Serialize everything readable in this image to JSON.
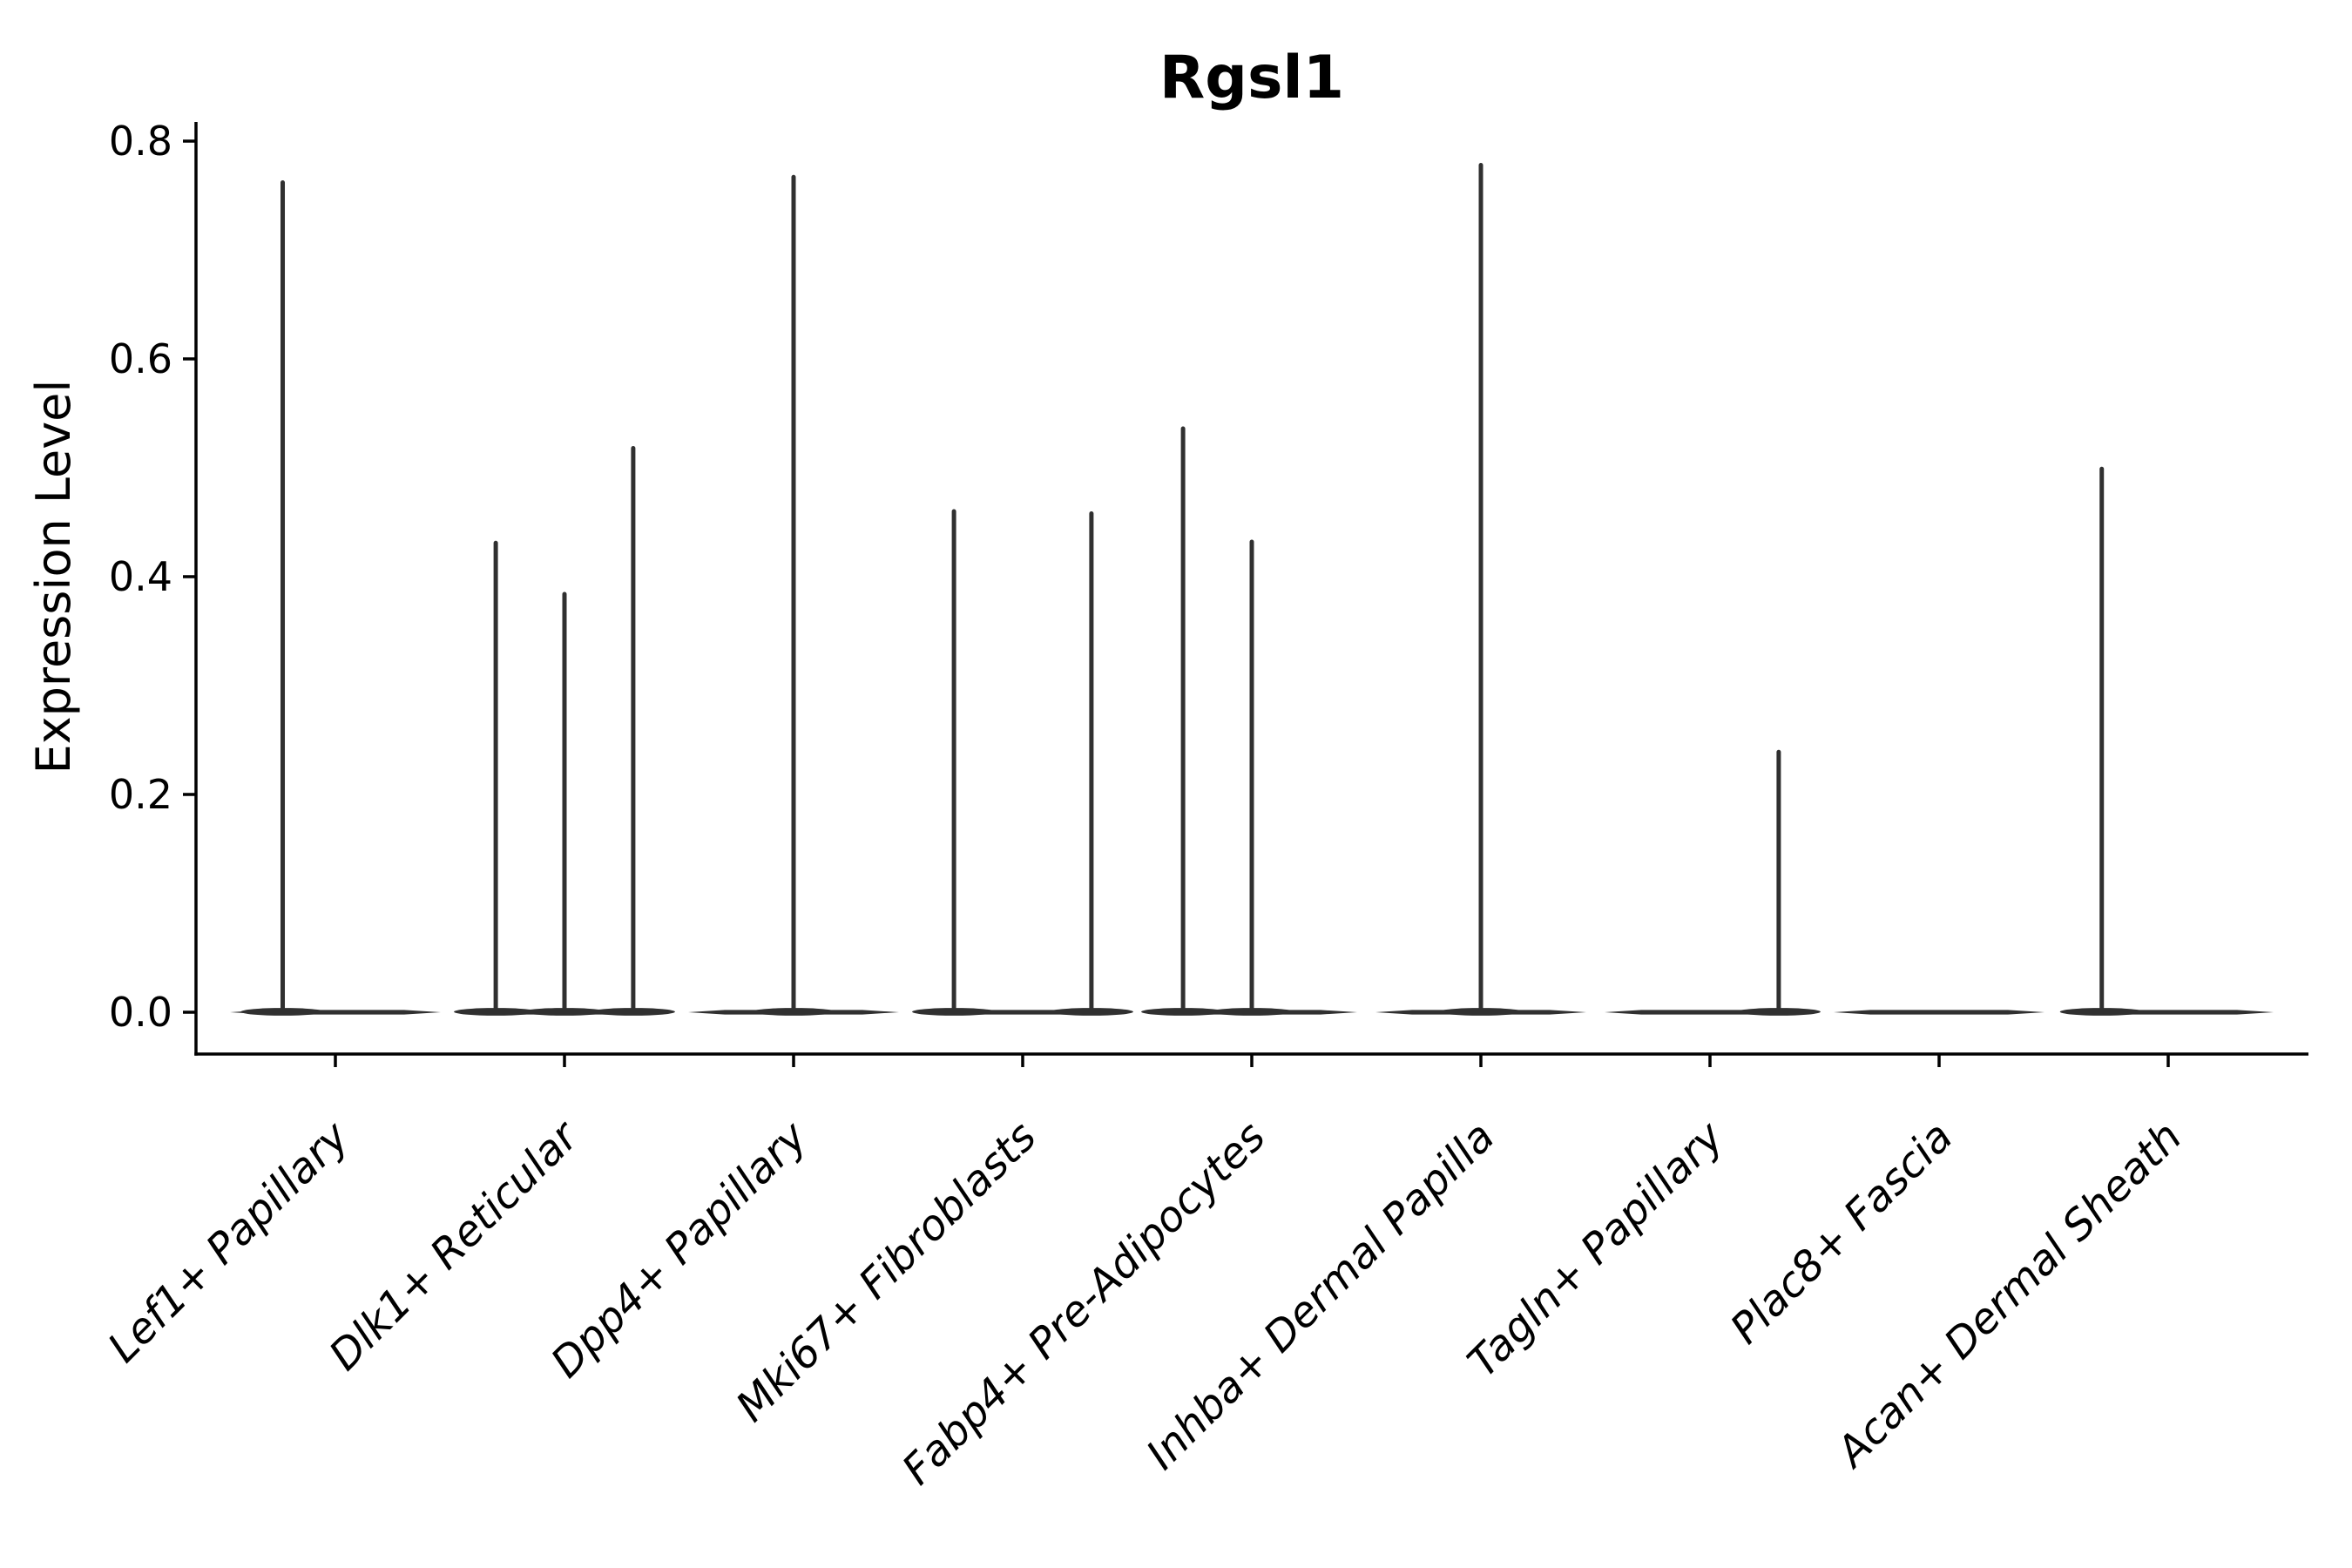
{
  "figure": {
    "background_color": "#ffffff"
  },
  "chart_data": {
    "type": "violin",
    "title": "Rgsl1",
    "xlabel": "",
    "ylabel": "Expression Level",
    "ylim": [
      -0.04,
      0.82
    ],
    "grid": false,
    "legend": null,
    "colors": {
      "violin": "#303030",
      "axis": "#000000",
      "text": "#000000",
      "background": "#ffffff"
    },
    "yticks": [
      {
        "value": 0.0,
        "label": "0.0"
      },
      {
        "value": 0.2,
        "label": "0.2"
      },
      {
        "value": 0.4,
        "label": "0.4"
      },
      {
        "value": 0.6,
        "label": "0.6"
      },
      {
        "value": 0.8,
        "label": "0.8"
      }
    ],
    "categories": [
      "Lef1+ Papillary",
      "Dlk1+ Reticular",
      "Dpp4+ Papillary",
      "Mki67+ Fibroblasts",
      "Fabp4+ Pre-Adipocytes",
      "Inhba+ Dermal Papilla",
      "Tagln+ Papillary",
      "Plac8+ Fascia",
      "Acan+ Dermal Sheath"
    ],
    "baseline_halfwidth": 0.46,
    "violins": [
      {
        "category": "Lef1+ Papillary",
        "density_mass_at_zero": true,
        "spikes": [
          {
            "pos": -0.23,
            "max": 0.762
          }
        ]
      },
      {
        "category": "Dlk1+ Reticular",
        "density_mass_at_zero": true,
        "spikes": [
          {
            "pos": -0.3,
            "max": 0.431
          },
          {
            "pos": 0.0,
            "max": 0.384
          },
          {
            "pos": 0.3,
            "max": 0.518
          }
        ]
      },
      {
        "category": "Dpp4+ Papillary",
        "density_mass_at_zero": true,
        "spikes": [
          {
            "pos": 0.0,
            "max": 0.767
          }
        ]
      },
      {
        "category": "Mki67+ Fibroblasts",
        "density_mass_at_zero": true,
        "spikes": [
          {
            "pos": -0.3,
            "max": 0.46
          },
          {
            "pos": 0.3,
            "max": 0.458
          }
        ]
      },
      {
        "category": "Fabp4+ Pre-Adipocytes",
        "density_mass_at_zero": true,
        "spikes": [
          {
            "pos": -0.3,
            "max": 0.536
          },
          {
            "pos": 0.0,
            "max": 0.432
          }
        ]
      },
      {
        "category": "Inhba+ Dermal Papilla",
        "density_mass_at_zero": true,
        "spikes": [
          {
            "pos": 0.0,
            "max": 0.778
          }
        ]
      },
      {
        "category": "Tagln+ Papillary",
        "density_mass_at_zero": true,
        "spikes": [
          {
            "pos": 0.3,
            "max": 0.239
          }
        ]
      },
      {
        "category": "Plac8+ Fascia",
        "density_mass_at_zero": true,
        "spikes": []
      },
      {
        "category": "Acan+ Dermal Sheath",
        "density_mass_at_zero": true,
        "spikes": [
          {
            "pos": -0.29,
            "max": 0.499
          }
        ]
      }
    ]
  }
}
